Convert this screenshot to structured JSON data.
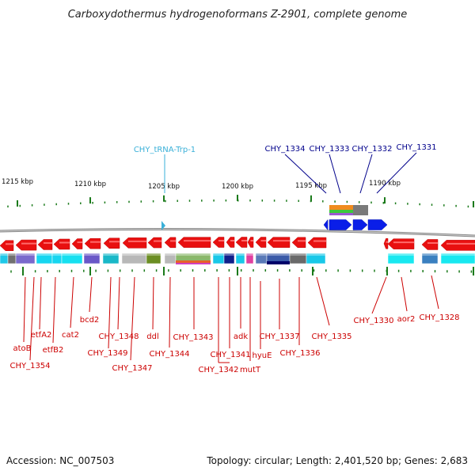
{
  "title": "Carboxydothermus hydrogenoformans Z-2901, complete genome",
  "footer": {
    "accession": "Accession: NC_007503",
    "topology": "Topology: circular; Length: 2,401,520 bp; Genes: 2,683"
  },
  "colors": {
    "forward_gene": "#0a1ee8",
    "reverse_gene": "#e81010",
    "trna": "#3ab0d8",
    "tick": "#1a7a1a",
    "backbone": "#777777",
    "red_label": "#cc0000",
    "blue_label": "#00008b"
  },
  "axis": {
    "unit": "kbp",
    "labels": [
      "1215 kbp",
      "1210 kbp",
      "1205 kbp",
      "1200 kbp",
      "1195 kbp",
      "1190 kbp"
    ]
  },
  "reverse_genes": [
    {
      "name": "atoB"
    },
    {
      "name": "CHY_1354"
    },
    {
      "name": "etfA2"
    },
    {
      "name": "etfB2"
    },
    {
      "name": "cat2"
    },
    {
      "name": "bcd2"
    },
    {
      "name": "CHY_1349"
    },
    {
      "name": "CHY_1348"
    },
    {
      "name": "CHY_1347"
    },
    {
      "name": "ddl"
    },
    {
      "name": "CHY_1344"
    },
    {
      "name": "CHY_1343"
    },
    {
      "name": "CHY_1342"
    },
    {
      "name": "CHY_1341"
    },
    {
      "name": "adk"
    },
    {
      "name": "mutT"
    },
    {
      "name": "hyuE"
    },
    {
      "name": "CHY_1337"
    },
    {
      "name": "CHY_1336"
    },
    {
      "name": "CHY_1335"
    },
    {
      "name": "CHY_1330"
    },
    {
      "name": "aor2"
    },
    {
      "name": "CHY_1328"
    }
  ],
  "forward_genes": [
    {
      "name": "CHY_1334"
    },
    {
      "name": "CHY_1333"
    },
    {
      "name": "CHY_1332"
    },
    {
      "name": "CHY_1331"
    }
  ],
  "trna": {
    "name": "CHY_tRNA-Trp-1"
  }
}
